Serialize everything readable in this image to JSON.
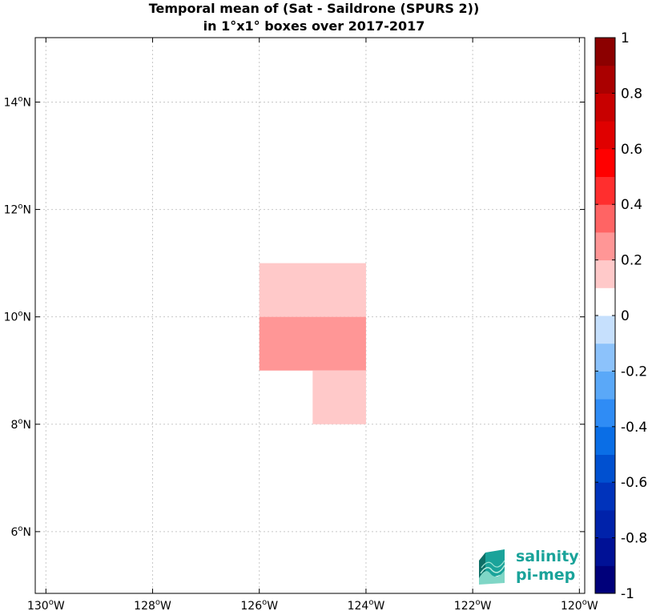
{
  "chart_data": {
    "type": "heatmap",
    "title": [
      "Temporal mean of (Sat - Saildrone (SPURS 2))",
      "in 1°x1° boxes over 2017-2017"
    ],
    "xlim": [
      -130.2,
      -119.9
    ],
    "ylim": [
      4.85,
      15.2
    ],
    "x_ticks": [
      {
        "value": -130,
        "deg": "130",
        "hemi": "W"
      },
      {
        "value": -128,
        "deg": "128",
        "hemi": "W"
      },
      {
        "value": -126,
        "deg": "126",
        "hemi": "W"
      },
      {
        "value": -124,
        "deg": "124",
        "hemi": "W"
      },
      {
        "value": -122,
        "deg": "122",
        "hemi": "W"
      },
      {
        "value": -120,
        "deg": "120",
        "hemi": "W"
      }
    ],
    "y_ticks": [
      {
        "value": 6,
        "deg": "6",
        "hemi": "N"
      },
      {
        "value": 8,
        "deg": "8",
        "hemi": "N"
      },
      {
        "value": 10,
        "deg": "10",
        "hemi": "N"
      },
      {
        "value": 12,
        "deg": "12",
        "hemi": "N"
      },
      {
        "value": 14,
        "deg": "14",
        "hemi": "N"
      }
    ],
    "grid": true,
    "cells": [
      {
        "lon_min": -126,
        "lon_max": -124,
        "lat_min": 10,
        "lat_max": 11,
        "value": 0.15
      },
      {
        "lon_min": -126,
        "lon_max": -124,
        "lat_min": 9,
        "lat_max": 10,
        "value": 0.25
      },
      {
        "lon_min": -125,
        "lon_max": -124,
        "lat_min": 8,
        "lat_max": 9,
        "value": 0.15
      }
    ],
    "colorbar": {
      "min": -1,
      "max": 1,
      "step": 0.1,
      "colors": [
        "#00007a",
        "#001196",
        "#0022aa",
        "#0033bb",
        "#0050d0",
        "#0a6ee6",
        "#2f8cf5",
        "#5aa8f8",
        "#8cc2fb",
        "#c6e0fd",
        "#ffffff",
        "#ffc9c9",
        "#ff9696",
        "#ff6464",
        "#ff2e2e",
        "#ff0000",
        "#e00000",
        "#c80000",
        "#aa0000",
        "#8c0000"
      ],
      "tick_labels": [
        {
          "value": 1,
          "label": "1"
        },
        {
          "value": 0.8,
          "label": "0.8"
        },
        {
          "value": 0.6,
          "label": "0.6"
        },
        {
          "value": 0.4,
          "label": "0.4"
        },
        {
          "value": 0.2,
          "label": "0.2"
        },
        {
          "value": 0,
          "label": "0"
        },
        {
          "value": -0.2,
          "label": "-0.2"
        },
        {
          "value": -0.4,
          "label": "-0.4"
        },
        {
          "value": -0.6,
          "label": "-0.6"
        },
        {
          "value": -0.8,
          "label": "-0.8"
        },
        {
          "value": -1,
          "label": "-1"
        }
      ]
    }
  },
  "logo": {
    "line1": "salinity",
    "line2": "pi-mep",
    "color": "#1aa39a"
  }
}
